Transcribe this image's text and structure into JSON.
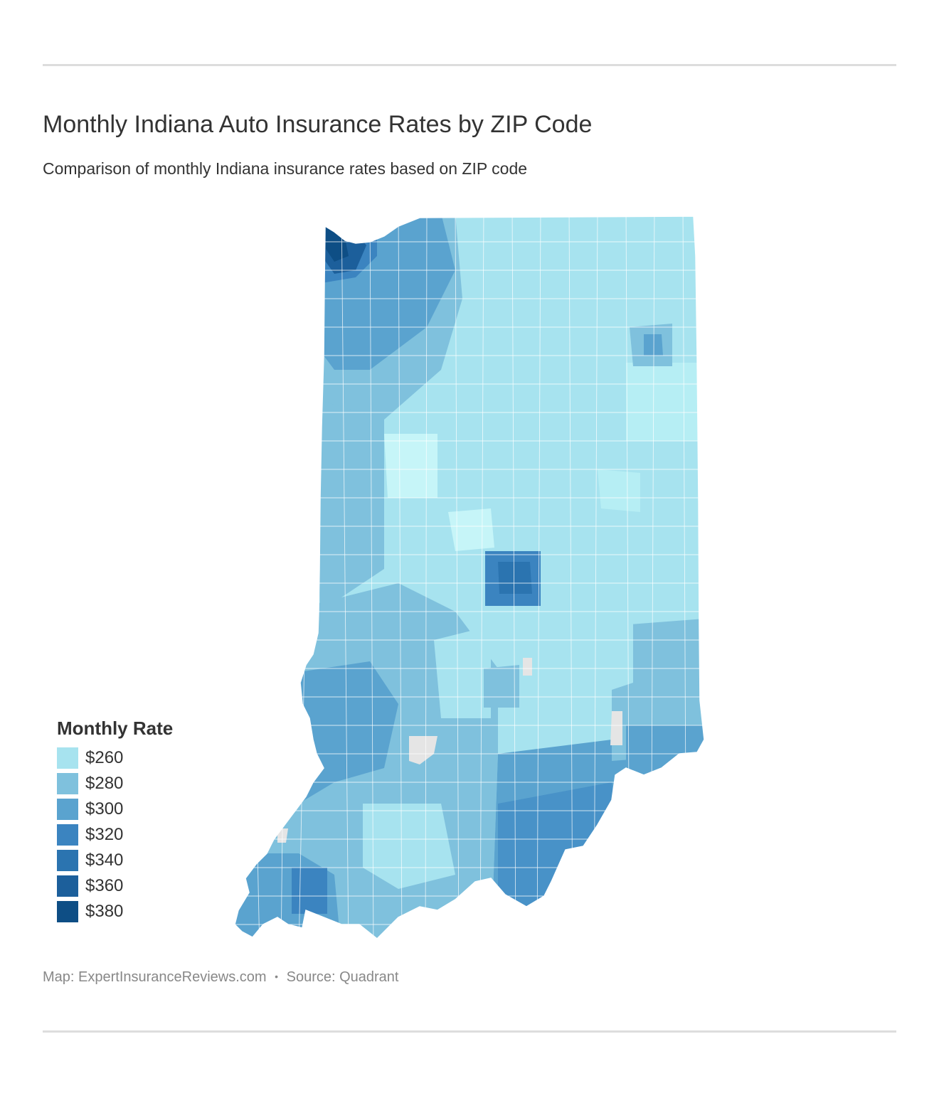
{
  "header": {
    "title": "Monthly Indiana Auto Insurance Rates by ZIP Code",
    "subtitle": "Comparison of monthly Indiana insurance rates based on ZIP code"
  },
  "legend": {
    "title": "Monthly Rate",
    "items": [
      {
        "label": "$260",
        "color": "#a7e3ef"
      },
      {
        "label": "$280",
        "color": "#7fc1dd"
      },
      {
        "label": "$300",
        "color": "#5aa3cf"
      },
      {
        "label": "$320",
        "color": "#3b84c0"
      },
      {
        "label": "$340",
        "color": "#2b74b0"
      },
      {
        "label": "$360",
        "color": "#1c5f9b"
      },
      {
        "label": "$380",
        "color": "#0e4e85"
      }
    ]
  },
  "footer": {
    "map_credit": "Map: ExpertInsuranceReviews.com",
    "separator": "•",
    "source": "Source: Quadrant"
  },
  "map_data": {
    "state": "Indiana",
    "regions": [
      {
        "area": "northwest",
        "level": "$380"
      },
      {
        "area": "north-central",
        "level": "$300"
      },
      {
        "area": "northeast",
        "level": "$260"
      },
      {
        "area": "central",
        "level": "$260"
      },
      {
        "area": "indianapolis",
        "level": "$340"
      },
      {
        "area": "west-central",
        "level": "$280"
      },
      {
        "area": "southwest",
        "level": "$300"
      },
      {
        "area": "south-central",
        "level": "$280"
      },
      {
        "area": "southeast",
        "level": "$300"
      }
    ]
  }
}
